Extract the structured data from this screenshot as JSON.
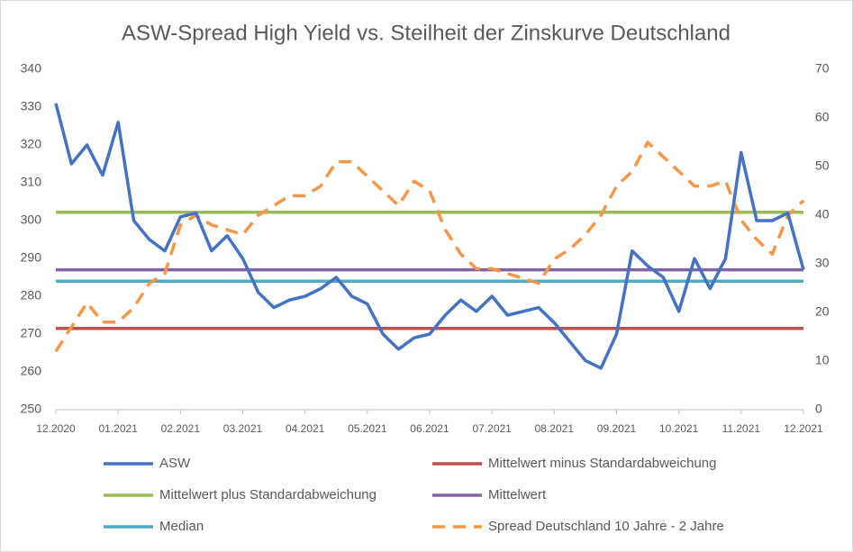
{
  "chart_data": {
    "type": "line",
    "title": "ASW-Spread High Yield vs. Steilheit der Zinskurve Deutschland",
    "categories": [
      "12.2020",
      null,
      null,
      null,
      "01.2021",
      null,
      null,
      null,
      "02.2021",
      null,
      null,
      null,
      "03.2021",
      null,
      null,
      null,
      "04.2021",
      null,
      null,
      null,
      "05.2021",
      null,
      null,
      null,
      "06.2021",
      null,
      null,
      null,
      "07.2021",
      null,
      null,
      null,
      "08.2021",
      null,
      null,
      null,
      "09.2021",
      null,
      null,
      null,
      "10.2021",
      null,
      null,
      null,
      "11.2021",
      null,
      null,
      null,
      "12.2021"
    ],
    "series": [
      {
        "name": "ASW",
        "color": "#4472c4",
        "values": [
          331,
          315,
          320,
          312,
          326,
          300,
          295,
          292,
          301,
          302,
          292,
          296,
          290,
          281,
          277,
          279,
          280,
          282,
          285,
          280,
          278,
          270,
          266,
          269,
          270,
          275,
          279,
          276,
          280,
          275,
          276,
          277,
          273,
          268,
          263,
          261,
          270,
          292,
          288,
          285,
          276,
          290,
          282,
          290,
          318,
          300,
          300,
          302,
          287
        ]
      },
      {
        "name": "Mittelwert minus Standardabweichung",
        "color": "#c0504d",
        "value": 271.5
      },
      {
        "name": "Mittelwert plus Standardabweichung",
        "color": "#9bbb59",
        "value": 302.2
      },
      {
        "name": "Mittelwert",
        "color": "#8064a2",
        "value": 287
      },
      {
        "name": "Median",
        "color": "#4bacc6",
        "value": 284
      },
      {
        "name": "Spread Deutschland 10 Jahre - 2 Jahre",
        "color": "#f79646",
        "axis": "y2",
        "dashed": true,
        "values": [
          12,
          17,
          22,
          18,
          18,
          21,
          26,
          28,
          38,
          40,
          38,
          37,
          36,
          40,
          42,
          44,
          44,
          46,
          51,
          51,
          48,
          45,
          42,
          47,
          45,
          37,
          32,
          29,
          29,
          28,
          27,
          26,
          31,
          33,
          36,
          40,
          46,
          49,
          55,
          52,
          49,
          46,
          46,
          47,
          39,
          35,
          32,
          40,
          43
        ]
      }
    ],
    "ylim": [
      250,
      340
    ],
    "yticks": [
      250,
      260,
      270,
      280,
      290,
      300,
      310,
      320,
      330,
      340
    ],
    "y2lim": [
      0,
      70
    ],
    "y2ticks": [
      0,
      10,
      20,
      30,
      40,
      50,
      60,
      70
    ],
    "grid": false
  }
}
